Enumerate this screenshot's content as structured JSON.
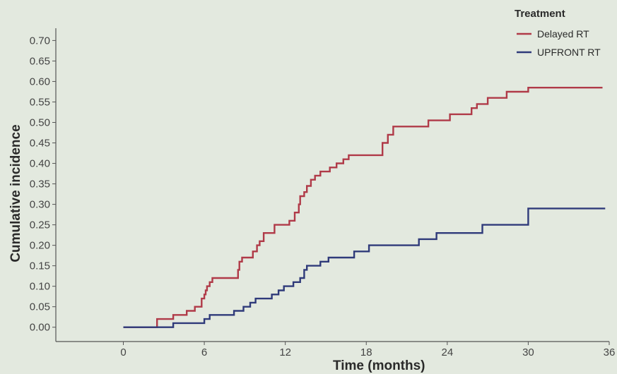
{
  "chart_data": {
    "type": "line",
    "step": true,
    "xlabel": "Time (months)",
    "ylabel": "Cumulative incidence",
    "xlim": [
      -5,
      36
    ],
    "ylim": [
      -0.035,
      0.73
    ],
    "xticks": [
      0,
      6,
      12,
      18,
      24,
      30,
      36
    ],
    "yticks": [
      0.0,
      0.05,
      0.1,
      0.15,
      0.2,
      0.25,
      0.3,
      0.35,
      0.4,
      0.45,
      0.5,
      0.55,
      0.6,
      0.65,
      0.7
    ],
    "ytick_labels": [
      "0.00",
      "0.05",
      "0.10",
      "0.15",
      "0.20",
      "0.25",
      "0.30",
      "0.35",
      "0.40",
      "0.45",
      "0.50",
      "0.55",
      "0.60",
      "0.65",
      "0.70"
    ],
    "grid": false,
    "legend": {
      "title": "Treatment",
      "position": "top-right"
    },
    "series": [
      {
        "name": "Delayed RT",
        "color": "#b03a48",
        "points": [
          [
            0,
            0
          ],
          [
            2.5,
            0
          ],
          [
            2.5,
            0.02
          ],
          [
            3.7,
            0.02
          ],
          [
            3.7,
            0.03
          ],
          [
            4.7,
            0.03
          ],
          [
            4.7,
            0.04
          ],
          [
            5.3,
            0.04
          ],
          [
            5.3,
            0.05
          ],
          [
            5.8,
            0.05
          ],
          [
            5.8,
            0.07
          ],
          [
            6.0,
            0.07
          ],
          [
            6.0,
            0.08
          ],
          [
            6.1,
            0.08
          ],
          [
            6.1,
            0.09
          ],
          [
            6.2,
            0.09
          ],
          [
            6.2,
            0.1
          ],
          [
            6.4,
            0.1
          ],
          [
            6.4,
            0.11
          ],
          [
            6.6,
            0.11
          ],
          [
            6.6,
            0.12
          ],
          [
            8.5,
            0.12
          ],
          [
            8.5,
            0.14
          ],
          [
            8.6,
            0.14
          ],
          [
            8.6,
            0.16
          ],
          [
            8.8,
            0.16
          ],
          [
            8.8,
            0.17
          ],
          [
            9.6,
            0.17
          ],
          [
            9.6,
            0.185
          ],
          [
            9.9,
            0.185
          ],
          [
            9.9,
            0.2
          ],
          [
            10.1,
            0.2
          ],
          [
            10.1,
            0.21
          ],
          [
            10.4,
            0.21
          ],
          [
            10.4,
            0.23
          ],
          [
            11.2,
            0.23
          ],
          [
            11.2,
            0.25
          ],
          [
            12.3,
            0.25
          ],
          [
            12.3,
            0.26
          ],
          [
            12.7,
            0.26
          ],
          [
            12.7,
            0.28
          ],
          [
            13.0,
            0.28
          ],
          [
            13.0,
            0.3
          ],
          [
            13.1,
            0.3
          ],
          [
            13.1,
            0.32
          ],
          [
            13.4,
            0.32
          ],
          [
            13.4,
            0.33
          ],
          [
            13.6,
            0.33
          ],
          [
            13.6,
            0.345
          ],
          [
            13.9,
            0.345
          ],
          [
            13.9,
            0.36
          ],
          [
            14.2,
            0.36
          ],
          [
            14.2,
            0.37
          ],
          [
            14.6,
            0.37
          ],
          [
            14.6,
            0.38
          ],
          [
            15.3,
            0.38
          ],
          [
            15.3,
            0.39
          ],
          [
            15.8,
            0.39
          ],
          [
            15.8,
            0.4
          ],
          [
            16.3,
            0.4
          ],
          [
            16.3,
            0.41
          ],
          [
            16.7,
            0.41
          ],
          [
            16.7,
            0.42
          ],
          [
            19.2,
            0.42
          ],
          [
            19.2,
            0.45
          ],
          [
            19.6,
            0.45
          ],
          [
            19.6,
            0.47
          ],
          [
            20.0,
            0.47
          ],
          [
            20.0,
            0.49
          ],
          [
            22.6,
            0.49
          ],
          [
            22.6,
            0.505
          ],
          [
            24.2,
            0.505
          ],
          [
            24.2,
            0.52
          ],
          [
            25.8,
            0.52
          ],
          [
            25.8,
            0.535
          ],
          [
            26.2,
            0.535
          ],
          [
            26.2,
            0.545
          ],
          [
            27.0,
            0.545
          ],
          [
            27.0,
            0.56
          ],
          [
            28.4,
            0.56
          ],
          [
            28.4,
            0.575
          ],
          [
            30.0,
            0.575
          ],
          [
            30.0,
            0.585
          ],
          [
            35.5,
            0.585
          ]
        ]
      },
      {
        "name": "UPFRONT RT",
        "color": "#2f3a7a",
        "points": [
          [
            0,
            0
          ],
          [
            3.7,
            0
          ],
          [
            3.7,
            0.01
          ],
          [
            6.0,
            0.01
          ],
          [
            6.0,
            0.02
          ],
          [
            6.4,
            0.02
          ],
          [
            6.4,
            0.03
          ],
          [
            8.2,
            0.03
          ],
          [
            8.2,
            0.04
          ],
          [
            8.9,
            0.04
          ],
          [
            8.9,
            0.05
          ],
          [
            9.4,
            0.05
          ],
          [
            9.4,
            0.06
          ],
          [
            9.8,
            0.06
          ],
          [
            9.8,
            0.07
          ],
          [
            11.0,
            0.07
          ],
          [
            11.0,
            0.08
          ],
          [
            11.5,
            0.08
          ],
          [
            11.5,
            0.09
          ],
          [
            11.9,
            0.09
          ],
          [
            11.9,
            0.1
          ],
          [
            12.6,
            0.1
          ],
          [
            12.6,
            0.11
          ],
          [
            13.1,
            0.11
          ],
          [
            13.1,
            0.12
          ],
          [
            13.4,
            0.12
          ],
          [
            13.4,
            0.14
          ],
          [
            13.6,
            0.14
          ],
          [
            13.6,
            0.15
          ],
          [
            14.6,
            0.15
          ],
          [
            14.6,
            0.16
          ],
          [
            15.2,
            0.16
          ],
          [
            15.2,
            0.17
          ],
          [
            17.1,
            0.17
          ],
          [
            17.1,
            0.185
          ],
          [
            18.2,
            0.185
          ],
          [
            18.2,
            0.2
          ],
          [
            21.9,
            0.2
          ],
          [
            21.9,
            0.215
          ],
          [
            23.2,
            0.215
          ],
          [
            23.2,
            0.23
          ],
          [
            26.6,
            0.23
          ],
          [
            26.6,
            0.25
          ],
          [
            30.0,
            0.25
          ],
          [
            30.0,
            0.29
          ],
          [
            35.7,
            0.29
          ]
        ]
      }
    ]
  }
}
